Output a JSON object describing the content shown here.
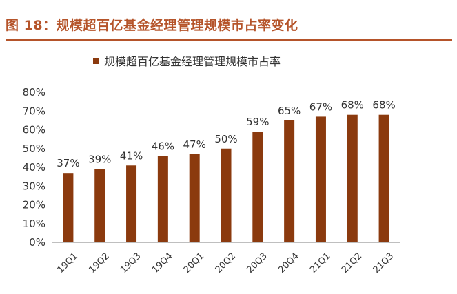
{
  "figure": {
    "title": "图 18：规模超百亿基金经理管理规模市占率变化"
  },
  "colors": {
    "accent": "#b5542a",
    "bar": "#8b3a0e",
    "text": "#333333",
    "axis": "#bfbfbf"
  },
  "chart_data": {
    "type": "bar",
    "categories": [
      "19Q1",
      "19Q2",
      "19Q3",
      "19Q4",
      "20Q1",
      "20Q2",
      "20Q3",
      "20Q4",
      "21Q1",
      "21Q2",
      "21Q3"
    ],
    "series": [
      {
        "name": "规模超百亿基金经理管理规模市占率",
        "values": [
          37,
          39,
          41,
          46,
          47,
          50,
          59,
          65,
          67,
          68,
          68
        ],
        "labels": [
          "37%",
          "39%",
          "41%",
          "46%",
          "47%",
          "50%",
          "59%",
          "65%",
          "67%",
          "68%",
          "68%"
        ]
      }
    ],
    "ylim": [
      0,
      80
    ],
    "yticks": [
      "0%",
      "10%",
      "20%",
      "30%",
      "40%",
      "50%",
      "60%",
      "70%",
      "80%"
    ],
    "legend_position": "top-center",
    "grid": false
  }
}
